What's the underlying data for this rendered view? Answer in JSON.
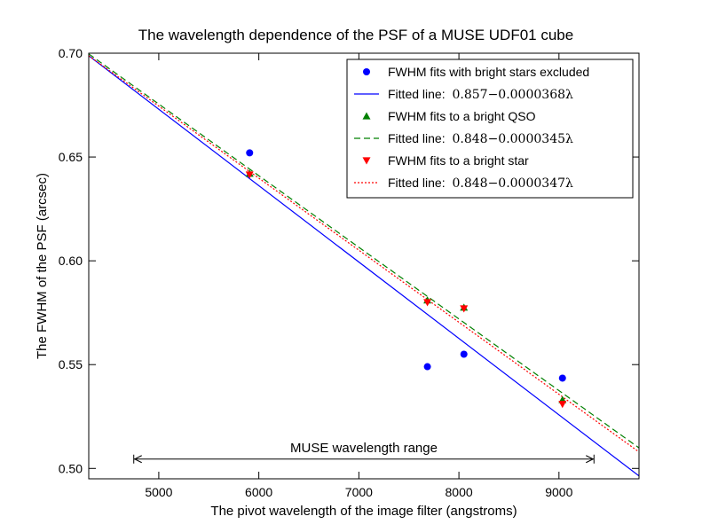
{
  "chart_data": {
    "type": "scatter",
    "title": "The wavelength dependence of the PSF of a MUSE UDF01 cube",
    "xlabel": "The pivot wavelength of the image filter (angstroms)",
    "ylabel": "The FWHM of the PSF (arcsec)",
    "xlim": [
      4300,
      9800
    ],
    "ylim": [
      0.495,
      0.7
    ],
    "xticks": [
      5000,
      6000,
      7000,
      8000,
      9000
    ],
    "xtick_labels": [
      "5000",
      "6000",
      "7000",
      "8000",
      "9000"
    ],
    "yticks": [
      0.5,
      0.55,
      0.6,
      0.65,
      0.7
    ],
    "ytick_labels": [
      "0.50",
      "0.55",
      "0.60",
      "0.65",
      "0.70"
    ],
    "grid": false,
    "legend_position": "top-right",
    "series": [
      {
        "name": "FWHM fits with bright stars excluded",
        "kind": "points",
        "marker": "circle",
        "color": "#0000ff",
        "x": [
          5908,
          7685,
          8050,
          9035
        ],
        "y": [
          0.652,
          0.549,
          0.555,
          0.5435
        ]
      },
      {
        "name": "Fitted line: ",
        "math": "0.857−0.0000368λ",
        "kind": "line",
        "style": "solid",
        "color": "#0000ff",
        "intercept": 0.857,
        "slope": -3.68e-05
      },
      {
        "name": "FWHM fits to a bright QSO",
        "kind": "points",
        "marker": "triangle-up",
        "color": "#008000",
        "x": [
          5908,
          7685,
          8050,
          9035
        ],
        "y": [
          0.642,
          0.581,
          0.5775,
          0.533
        ]
      },
      {
        "name": "Fitted line: ",
        "math": "0.848−0.0000345λ",
        "kind": "line",
        "style": "dashed",
        "color": "#008000",
        "intercept": 0.848,
        "slope": -3.45e-05
      },
      {
        "name": "FWHM fits to a bright star",
        "kind": "points",
        "marker": "triangle-down",
        "color": "#ff0000",
        "x": [
          5908,
          7685,
          8050,
          9035
        ],
        "y": [
          0.6415,
          0.58,
          0.577,
          0.531
        ]
      },
      {
        "name": "Fitted line: ",
        "math": "0.848−0.0000347λ",
        "kind": "line",
        "style": "dotted",
        "color": "#ff0000",
        "intercept": 0.848,
        "slope": -3.47e-05
      }
    ],
    "annotation": {
      "text": "MUSE wavelength range",
      "x_range": [
        4750,
        9350
      ],
      "y": 0.5045
    }
  }
}
